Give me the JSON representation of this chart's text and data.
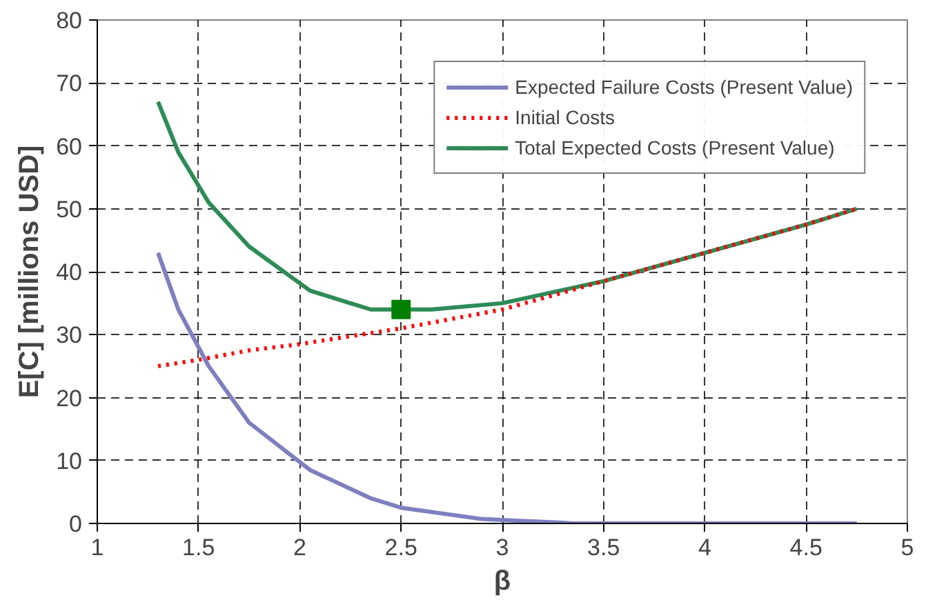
{
  "chart_data": {
    "type": "line",
    "xlabel": "β",
    "ylabel": "E[C] [millions USD]",
    "xlim": [
      1,
      5
    ],
    "xticks": [
      1,
      1.5,
      2,
      2.5,
      3,
      3.5,
      4,
      4.5,
      5
    ],
    "ylim": [
      0,
      80
    ],
    "yticks": [
      0,
      10,
      20,
      30,
      40,
      50,
      60,
      70,
      80
    ],
    "grid": true,
    "legend": "top right",
    "series": [
      {
        "name": "Expected Failure Costs (Present Value)",
        "color": "#7f7fbf",
        "line_style": "solid",
        "x": [
          1.3,
          1.4,
          1.55,
          1.75,
          2.05,
          2.35,
          2.5,
          2.9,
          3.3,
          3.35,
          4.75
        ],
        "values": [
          43,
          34,
          25,
          16,
          8.5,
          4,
          2.5,
          0.7,
          0.1,
          0,
          0
        ]
      },
      {
        "name": "Initial Costs",
        "color": "#ff0000",
        "line_style": "dotted",
        "x": [
          1.3,
          1.5,
          1.75,
          2.0,
          2.5,
          3.0,
          3.5,
          4.0,
          4.5,
          4.75
        ],
        "values": [
          25,
          26,
          27.5,
          28.5,
          31,
          34,
          38.5,
          43,
          47.5,
          50
        ]
      },
      {
        "name": "Total Expected Costs (Present Value)",
        "color": "#2e8b57",
        "line_style": "solid",
        "x": [
          1.3,
          1.4,
          1.55,
          1.75,
          2.05,
          2.35,
          2.5,
          2.65,
          3.0,
          3.5,
          4.0,
          4.5,
          4.75
        ],
        "values": [
          67,
          59,
          51,
          44,
          37,
          34,
          34,
          34,
          35,
          38.5,
          43,
          47.5,
          50
        ]
      },
      {
        "type": "scatter",
        "marker": "square",
        "color": "#008000",
        "x": [
          2.5
        ],
        "values": [
          34
        ]
      }
    ]
  }
}
